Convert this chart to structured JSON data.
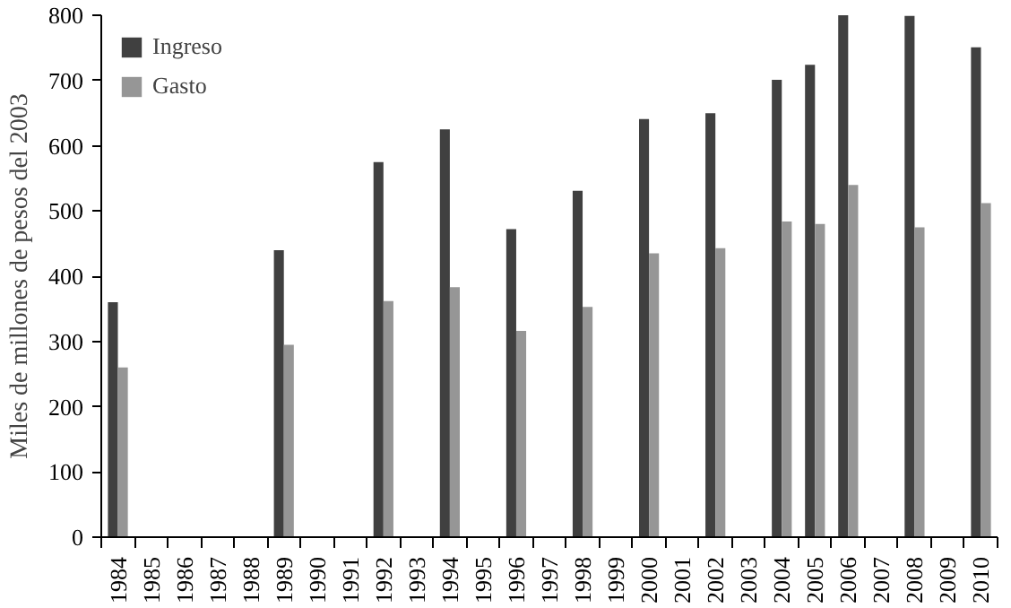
{
  "chart_data": {
    "type": "bar",
    "ylabel": "Miles de millones de pesos del 2003",
    "categories": [
      "1984",
      "1985",
      "1986",
      "1987",
      "1988",
      "1989",
      "1990",
      "1991",
      "1992",
      "1993",
      "1994",
      "1995",
      "1996",
      "1997",
      "1998",
      "1999",
      "2000",
      "2001",
      "2002",
      "2003",
      "2004",
      "2005",
      "2006",
      "2007",
      "2008",
      "2009",
      "2010"
    ],
    "series": [
      {
        "name": "Ingreso",
        "color": "#404040",
        "values": [
          360,
          null,
          null,
          null,
          null,
          440,
          null,
          null,
          575,
          null,
          625,
          null,
          472,
          null,
          531,
          null,
          641,
          null,
          650,
          null,
          701,
          724,
          800,
          null,
          799,
          null,
          751
        ]
      },
      {
        "name": "Gasto",
        "color": "#969696",
        "values": [
          260,
          null,
          null,
          null,
          null,
          295,
          null,
          null,
          362,
          null,
          383,
          null,
          316,
          null,
          353,
          null,
          435,
          null,
          443,
          null,
          484,
          480,
          540,
          null,
          475,
          null,
          512
        ]
      }
    ],
    "ylim": [
      0,
      800
    ],
    "yticks": [
      0,
      100,
      200,
      300,
      400,
      500,
      600,
      700,
      800
    ],
    "grid": false,
    "legend": "top left"
  }
}
